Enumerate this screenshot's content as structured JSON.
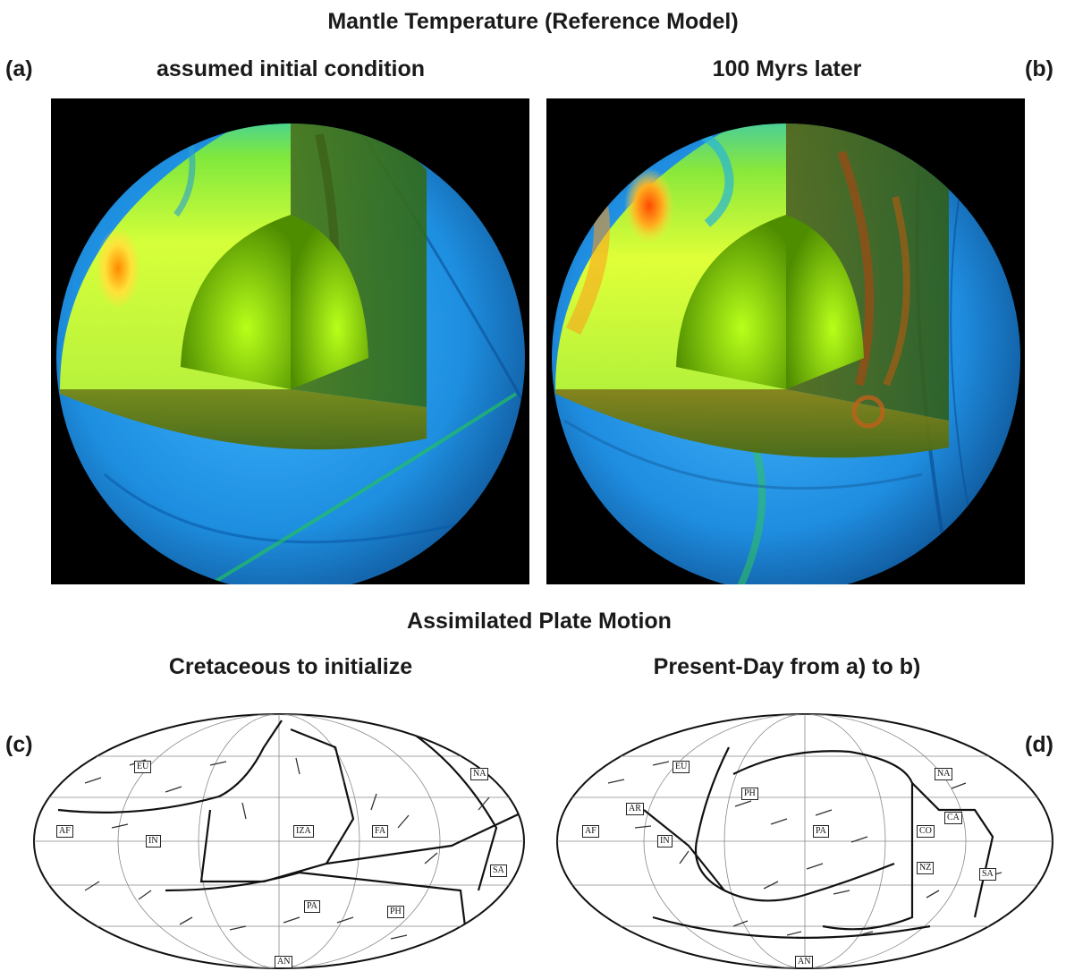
{
  "header": {
    "title": "Mantle Temperature (Reference Model)",
    "section2_title": "Assimilated Plate Motion"
  },
  "panels": {
    "a": {
      "label": "(a)",
      "caption": "assumed initial condition"
    },
    "b": {
      "label": "(b)",
      "caption": "100 Myrs later"
    },
    "c": {
      "label": "(c)",
      "caption": "Cretaceous to initialize",
      "plates": [
        "EU",
        "AF",
        "IN",
        "IZA",
        "FA",
        "NA",
        "SA",
        "PA",
        "PH",
        "AN"
      ]
    },
    "d": {
      "label": "(d)",
      "caption": "Present-Day from a) to b)",
      "plates": [
        "EU",
        "AR",
        "AF",
        "IN",
        "PH",
        "PA",
        "NA",
        "CA",
        "CO",
        "NZ",
        "SA",
        "AN"
      ]
    }
  },
  "colors": {
    "cold": "#1a7fd8",
    "cool": "#2ec7ff",
    "neutral": "#00cc66",
    "warm": "#c8ff2a",
    "hot": "#ff8c00",
    "core": "#7fd400",
    "background": "#000000"
  }
}
